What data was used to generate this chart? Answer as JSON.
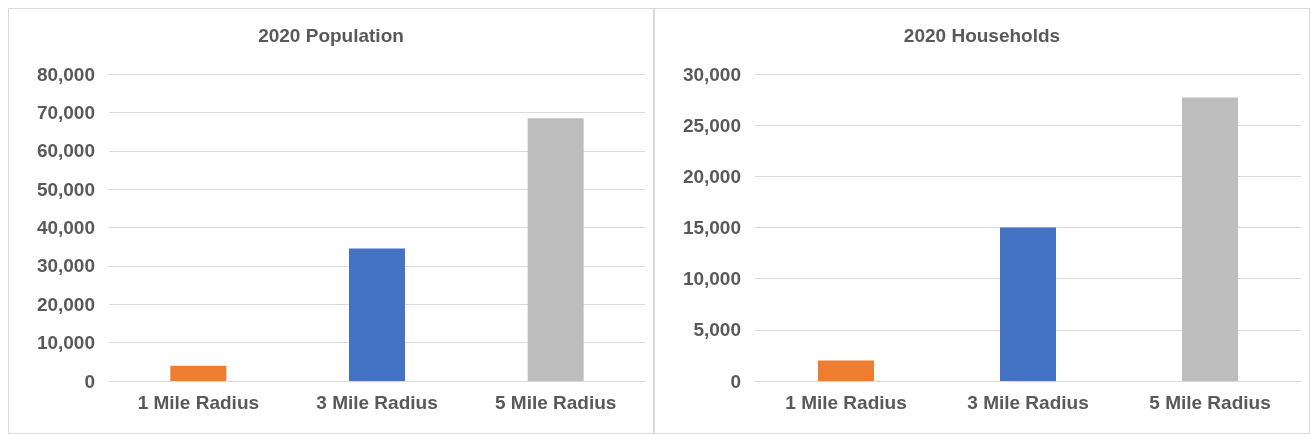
{
  "chart_data": [
    {
      "type": "bar",
      "title": "2020 Population",
      "categories": [
        "1 Mile Radius",
        "3 Mile Radius",
        "5 Mile Radius"
      ],
      "values": [
        4000,
        34500,
        68500
      ],
      "colors": [
        "#ed7d31",
        "#4472c4",
        "#bdbdbd"
      ],
      "ylim": [
        0,
        80000
      ],
      "yticks": [
        {
          "value": 0,
          "label": "0"
        },
        {
          "value": 10000,
          "label": "10,000"
        },
        {
          "value": 20000,
          "label": "20,000"
        },
        {
          "value": 30000,
          "label": "30,000"
        },
        {
          "value": 40000,
          "label": "40,000"
        },
        {
          "value": 50000,
          "label": "50,000"
        },
        {
          "value": 60000,
          "label": "60,000"
        },
        {
          "value": 70000,
          "label": "70,000"
        },
        {
          "value": 80000,
          "label": "80,000"
        }
      ],
      "grid": "y"
    },
    {
      "type": "bar",
      "title": "2020 Households",
      "categories": [
        "1 Mile Radius",
        "3 Mile Radius",
        "5 Mile Radius"
      ],
      "values": [
        2000,
        15000,
        27700
      ],
      "colors": [
        "#ed7d31",
        "#4472c4",
        "#bdbdbd"
      ],
      "ylim": [
        0,
        30000
      ],
      "yticks": [
        {
          "value": 0,
          "label": "0"
        },
        {
          "value": 5000,
          "label": "5,000"
        },
        {
          "value": 10000,
          "label": "10,000"
        },
        {
          "value": 15000,
          "label": "15,000"
        },
        {
          "value": 20000,
          "label": "20,000"
        },
        {
          "value": 25000,
          "label": "25,000"
        },
        {
          "value": 30000,
          "label": "30,000"
        }
      ],
      "grid": "y"
    }
  ]
}
